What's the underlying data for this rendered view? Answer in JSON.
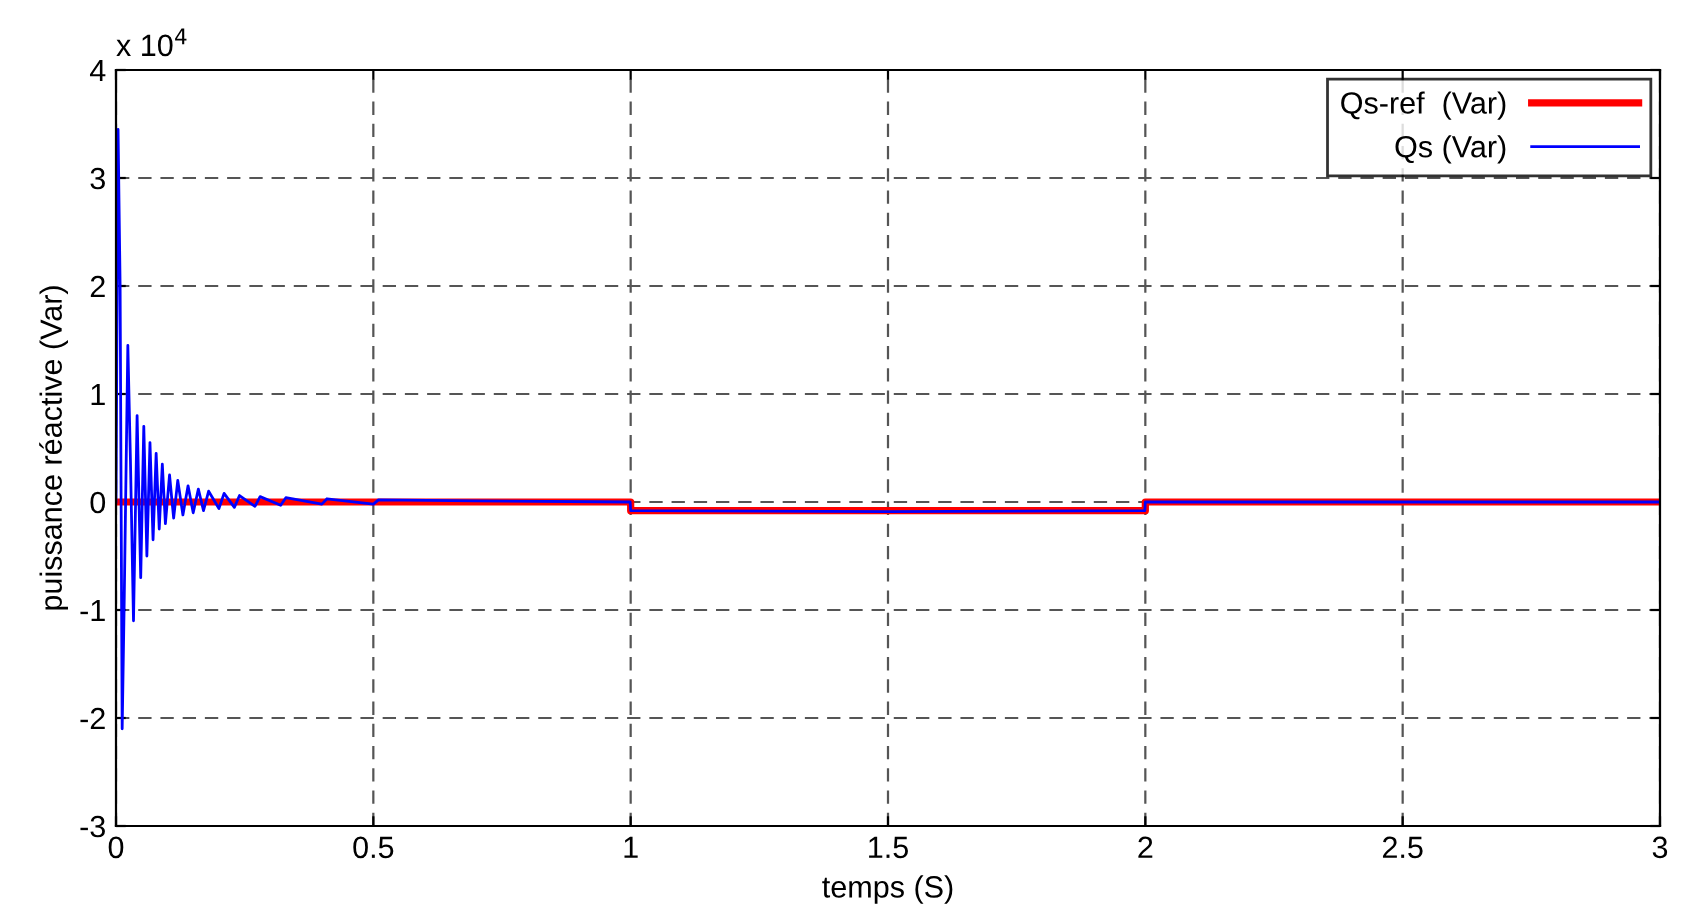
{
  "chart_data": {
    "type": "line",
    "xlabel": "temps (S)",
    "ylabel": "puissance réactive (Var)",
    "annotations": [
      "x 10$^{4}$"
    ],
    "xlim": [
      0,
      3
    ],
    "xticks": [
      0,
      0.5,
      1,
      1.5,
      2,
      2.5,
      3
    ],
    "ylim": [
      -3,
      4
    ],
    "yticks": [
      -3,
      -2,
      -1,
      0,
      1,
      2,
      3,
      4
    ],
    "grid": true,
    "legend": "top right",
    "series": [
      {
        "name": "Qs-ref  (Var)",
        "color": "#ff0000",
        "x": [
          0,
          1,
          1,
          2,
          2,
          3
        ],
        "values": [
          0,
          0,
          -0.08,
          -0.08,
          0,
          0
        ]
      },
      {
        "name": "Qs (Var)",
        "color": "#0000ff",
        "x": [
          0,
          0.004,
          0.008,
          0.012,
          0.016,
          0.023,
          0.028,
          0.034,
          0.041,
          0.048,
          0.054,
          0.06,
          0.066,
          0.072,
          0.078,
          0.084,
          0.09,
          0.096,
          0.104,
          0.112,
          0.12,
          0.13,
          0.14,
          0.15,
          0.16,
          0.17,
          0.18,
          0.2,
          0.21,
          0.23,
          0.24,
          0.27,
          0.28,
          0.32,
          0.33,
          0.4,
          0.41,
          0.5,
          0.51,
          0.7,
          0.999,
          1.0,
          1.5,
          1.999,
          2.0,
          3.0
        ],
        "values": [
          0,
          3.45,
          2.0,
          -2.1,
          -0.9,
          1.45,
          0.4,
          -1.1,
          0.8,
          -0.7,
          0.7,
          -0.5,
          0.55,
          -0.35,
          0.45,
          -0.25,
          0.35,
          -0.2,
          0.25,
          -0.15,
          0.2,
          -0.12,
          0.15,
          -0.1,
          0.12,
          -0.08,
          0.1,
          -0.06,
          0.08,
          -0.05,
          0.06,
          -0.04,
          0.05,
          -0.03,
          0.04,
          -0.02,
          0.03,
          -0.02,
          0.02,
          0.01,
          0,
          -0.08,
          -0.09,
          -0.08,
          0,
          0
        ]
      }
    ]
  }
}
